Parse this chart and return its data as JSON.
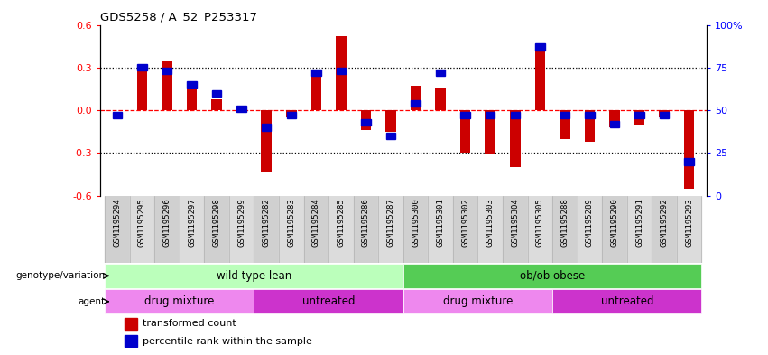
{
  "title": "GDS5258 / A_52_P253317",
  "samples": [
    "GSM1195294",
    "GSM1195295",
    "GSM1195296",
    "GSM1195297",
    "GSM1195298",
    "GSM1195299",
    "GSM1195282",
    "GSM1195283",
    "GSM1195284",
    "GSM1195285",
    "GSM1195286",
    "GSM1195287",
    "GSM1195300",
    "GSM1195301",
    "GSM1195302",
    "GSM1195303",
    "GSM1195304",
    "GSM1195305",
    "GSM1195288",
    "GSM1195289",
    "GSM1195290",
    "GSM1195291",
    "GSM1195292",
    "GSM1195293"
  ],
  "red_bars": [
    0.0,
    0.31,
    0.35,
    0.18,
    0.08,
    0.0,
    -0.43,
    -0.05,
    0.27,
    0.52,
    -0.14,
    -0.15,
    0.17,
    0.16,
    -0.3,
    -0.31,
    -0.4,
    0.45,
    -0.2,
    -0.22,
    -0.12,
    -0.1,
    -0.05,
    -0.55
  ],
  "blue_dots": [
    47,
    75,
    73,
    65,
    60,
    51,
    40,
    47,
    72,
    73,
    43,
    35,
    54,
    72,
    47,
    47,
    47,
    87,
    47,
    47,
    42,
    47,
    47,
    20
  ],
  "ylim_left": [
    -0.6,
    0.6
  ],
  "ylim_right": [
    0,
    100
  ],
  "yticks_left": [
    -0.6,
    -0.3,
    0.0,
    0.3,
    0.6
  ],
  "yticks_right": [
    0,
    25,
    50,
    75,
    100
  ],
  "ytick_labels_right": [
    "0",
    "25",
    "50",
    "75",
    "100%"
  ],
  "bar_color": "#cc0000",
  "dot_color": "#0000cc",
  "background_color": "#ffffff",
  "plot_bg": "#ffffff",
  "xticklabel_bg": "#d8d8d8",
  "genotype_row": {
    "label": "genotype/variation",
    "segments": [
      {
        "text": "wild type lean",
        "start": 0,
        "end": 11,
        "color": "#bbffbb"
      },
      {
        "text": "ob/ob obese",
        "start": 12,
        "end": 23,
        "color": "#55cc55"
      }
    ]
  },
  "agent_row": {
    "label": "agent",
    "segments": [
      {
        "text": "drug mixture",
        "start": 0,
        "end": 5,
        "color": "#ee88ee"
      },
      {
        "text": "untreated",
        "start": 6,
        "end": 11,
        "color": "#cc33cc"
      },
      {
        "text": "drug mixture",
        "start": 12,
        "end": 17,
        "color": "#ee88ee"
      },
      {
        "text": "untreated",
        "start": 18,
        "end": 23,
        "color": "#cc33cc"
      }
    ]
  },
  "legend": [
    {
      "label": "transformed count",
      "color": "#cc0000"
    },
    {
      "label": "percentile rank within the sample",
      "color": "#0000cc"
    }
  ]
}
